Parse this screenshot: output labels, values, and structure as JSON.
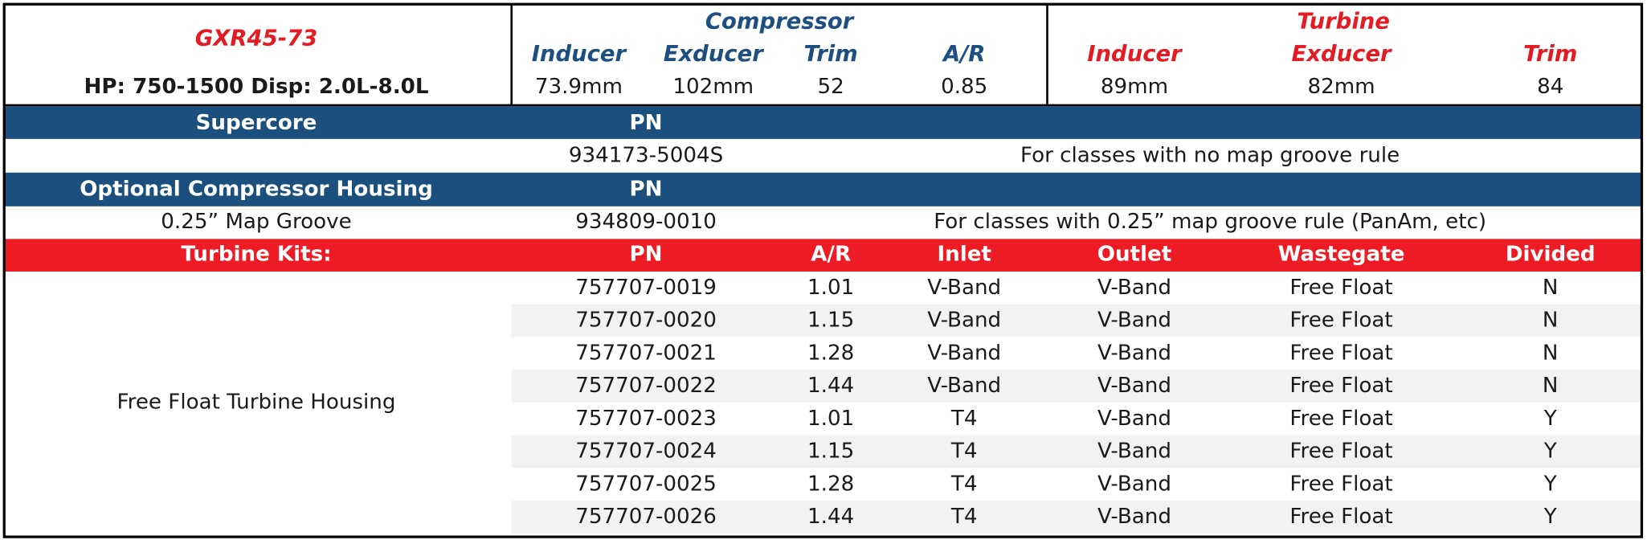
{
  "header": {
    "title": "GXR45-73",
    "subtitle": "HP: 750-1500 Disp: 2.0L-8.0L",
    "compressor": {
      "label": "Compressor",
      "columns": [
        {
          "label": "Inducer",
          "value": "73.9mm"
        },
        {
          "label": "Exducer",
          "value": "102mm"
        },
        {
          "label": "Trim",
          "value": "52"
        },
        {
          "label": "A/R",
          "value": "0.85"
        }
      ]
    },
    "turbine": {
      "label": "Turbine",
      "columns": [
        {
          "label": "Inducer",
          "value": "89mm"
        },
        {
          "label": "Exducer",
          "value": "82mm"
        },
        {
          "label": "Trim",
          "value": "84"
        }
      ]
    }
  },
  "supercore": {
    "label": "Supercore",
    "pn_header": "PN",
    "pn": "934173-5004S",
    "note": "For classes with no map groove rule"
  },
  "optional_housing": {
    "label": "Optional Compressor Housing",
    "pn_header": "PN",
    "name": "0.25” Map Groove",
    "pn": "934809-0010",
    "note": "For classes with 0.25” map groove rule (PanAm, etc)"
  },
  "turbine_kits": {
    "columns": [
      "Turbine Kits:",
      "PN",
      "A/R",
      "Inlet",
      "Outlet",
      "Wastegate",
      "Divided"
    ],
    "group": "Free Float Turbine Housing",
    "rows": [
      [
        "757707-0019",
        "1.01",
        "V-Band",
        "V-Band",
        "Free Float",
        "N"
      ],
      [
        "757707-0020",
        "1.15",
        "V-Band",
        "V-Band",
        "Free Float",
        "N"
      ],
      [
        "757707-0021",
        "1.28",
        "V-Band",
        "V-Band",
        "Free Float",
        "N"
      ],
      [
        "757707-0022",
        "1.44",
        "V-Band",
        "V-Band",
        "Free Float",
        "N"
      ],
      [
        "757707-0023",
        "1.01",
        "T4",
        "V-Band",
        "Free Float",
        "Y"
      ],
      [
        "757707-0024",
        "1.15",
        "T4",
        "V-Band",
        "Free Float",
        "Y"
      ],
      [
        "757707-0025",
        "1.28",
        "T4",
        "V-Band",
        "Free Float",
        "Y"
      ],
      [
        "757707-0026",
        "1.44",
        "T4",
        "V-Band",
        "Free Float",
        "Y"
      ]
    ]
  }
}
